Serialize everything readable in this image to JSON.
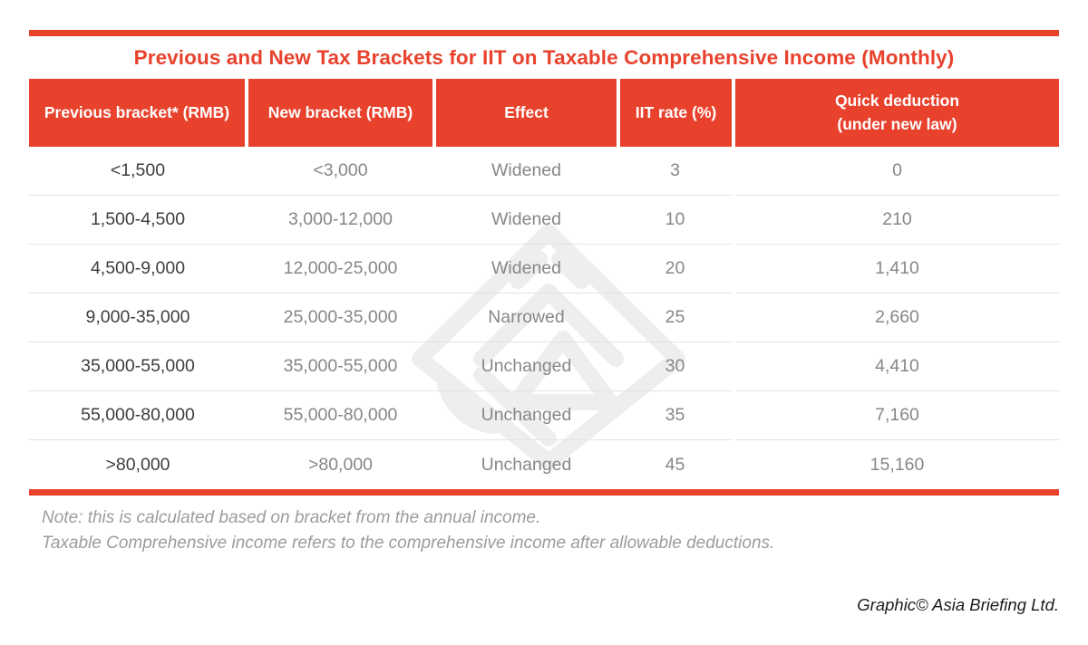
{
  "title": "Previous and New Tax Brackets for IIT on Taxable Comprehensive Income (Monthly)",
  "chart_data": {
    "type": "table",
    "title": "Previous and New Tax Brackets for IIT on Taxable Comprehensive Income (Monthly)",
    "columns": [
      "Previous bracket* (RMB)",
      "New bracket (RMB)",
      "Effect",
      "IIT rate (%)",
      "Quick deduction\n(under new law)"
    ],
    "rows": [
      [
        "<1,500",
        "<3,000",
        "Widened",
        "3",
        "0"
      ],
      [
        "1,500-4,500",
        "3,000-12,000",
        "Widened",
        "10",
        "210"
      ],
      [
        "4,500-9,000",
        "12,000-25,000",
        "Widened",
        "20",
        "1,410"
      ],
      [
        "9,000-35,000",
        "25,000-35,000",
        "Narrowed",
        "25",
        "2,660"
      ],
      [
        "35,000-55,000",
        "35,000-55,000",
        "Unchanged",
        "30",
        "4,410"
      ],
      [
        "55,000-80,000",
        "55,000-80,000",
        "Unchanged",
        "35",
        "7,160"
      ],
      [
        ">80,000",
        ">80,000",
        "Unchanged",
        "45",
        "15,160"
      ]
    ]
  },
  "notes": [
    "Note: this is calculated based on bracket from the annual income.",
    "Taxable Comprehensive income refers to the comprehensive income after allowable deductions."
  ],
  "credit": "Graphic© Asia Briefing Ltd.",
  "watermark_icon": "asia-briefing-logo",
  "colors": {
    "brand_red": "#E8422D",
    "header_text": "#FFFFFF",
    "first_column_text": "#3E3E3E",
    "cell_text": "#878787",
    "row_divider": "#E3E3E3",
    "note_text": "#9C9C9C",
    "credit_text": "#1C1C1C",
    "watermark": "#F0EEEC"
  }
}
